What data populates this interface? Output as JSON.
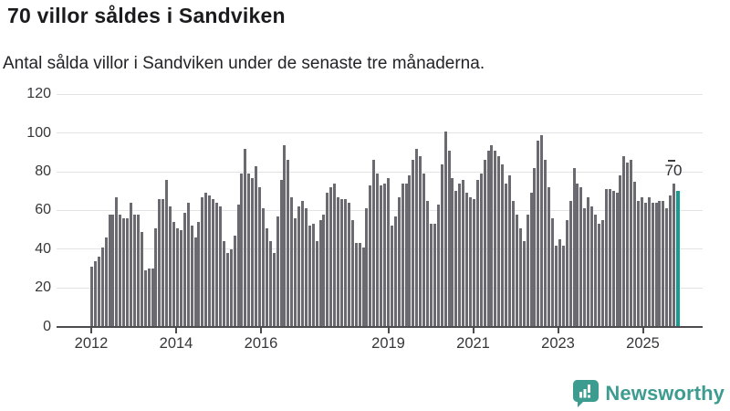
{
  "header": {
    "title": "70 villor såldes i Sandviken",
    "subtitle": "Antal sålda villor i Sandviken under de senaste tre månaderna."
  },
  "chart_data": {
    "type": "bar",
    "title": "70 villor såldes i Sandviken",
    "subtitle": "Antal sålda villor i Sandviken under de senaste tre månaderna.",
    "x_start": "2012-01",
    "x_frequency": "monthly",
    "values": [
      31,
      34,
      36,
      41,
      46,
      58,
      58,
      67,
      58,
      56,
      56,
      64,
      58,
      58,
      49,
      29,
      30,
      30,
      51,
      66,
      66,
      76,
      62,
      54,
      51,
      50,
      59,
      64,
      52,
      46,
      54,
      67,
      69,
      68,
      66,
      64,
      62,
      44,
      38,
      40,
      47,
      63,
      79,
      92,
      79,
      77,
      83,
      72,
      61,
      51,
      44,
      38,
      57,
      76,
      94,
      86,
      67,
      56,
      62,
      65,
      61,
      52,
      53,
      44,
      55,
      58,
      69,
      72,
      74,
      67,
      66,
      66,
      64,
      55,
      43,
      43,
      41,
      61,
      73,
      86,
      79,
      73,
      74,
      77,
      52,
      57,
      67,
      74,
      74,
      78,
      86,
      92,
      88,
      79,
      65,
      53,
      53,
      63,
      84,
      101,
      91,
      77,
      70,
      74,
      76,
      69,
      67,
      66,
      76,
      79,
      86,
      91,
      94,
      91,
      88,
      84,
      74,
      78,
      65,
      58,
      51,
      44,
      58,
      69,
      82,
      96,
      99,
      86,
      72,
      56,
      42,
      45,
      42,
      55,
      65,
      82,
      74,
      72,
      61,
      67,
      62,
      58,
      53,
      55,
      71,
      71,
      70,
      69,
      78,
      88,
      85,
      86,
      75,
      65,
      67,
      64,
      67,
      64,
      64,
      65,
      65,
      61,
      68,
      74,
      70
    ],
    "highlight_last_value": 70,
    "annotation_label": "70",
    "ylim": [
      0,
      120
    ],
    "yticks": [
      "0",
      "20",
      "40",
      "60",
      "80",
      "100",
      "120"
    ],
    "xticks": [
      {
        "label": "2012",
        "year": 2012
      },
      {
        "label": "2014",
        "year": 2014
      },
      {
        "label": "2016",
        "year": 2016
      },
      {
        "label": "2019",
        "year": 2019
      },
      {
        "label": "2021",
        "year": 2021
      },
      {
        "label": "2023",
        "year": 2023
      },
      {
        "label": "2025",
        "year": 2025
      }
    ],
    "grid": true,
    "legend": false,
    "xlabel": "",
    "ylabel": ""
  },
  "colors": {
    "bar": "#6b6a70",
    "highlight": "#189b93",
    "gridline": "#e3e3e6",
    "axis": "#4c4c4e",
    "brand": "#3d9c90"
  },
  "footer": {
    "brand": "Newsworthy",
    "logo_icon": "newsworthy-chart-bubble-icon"
  }
}
